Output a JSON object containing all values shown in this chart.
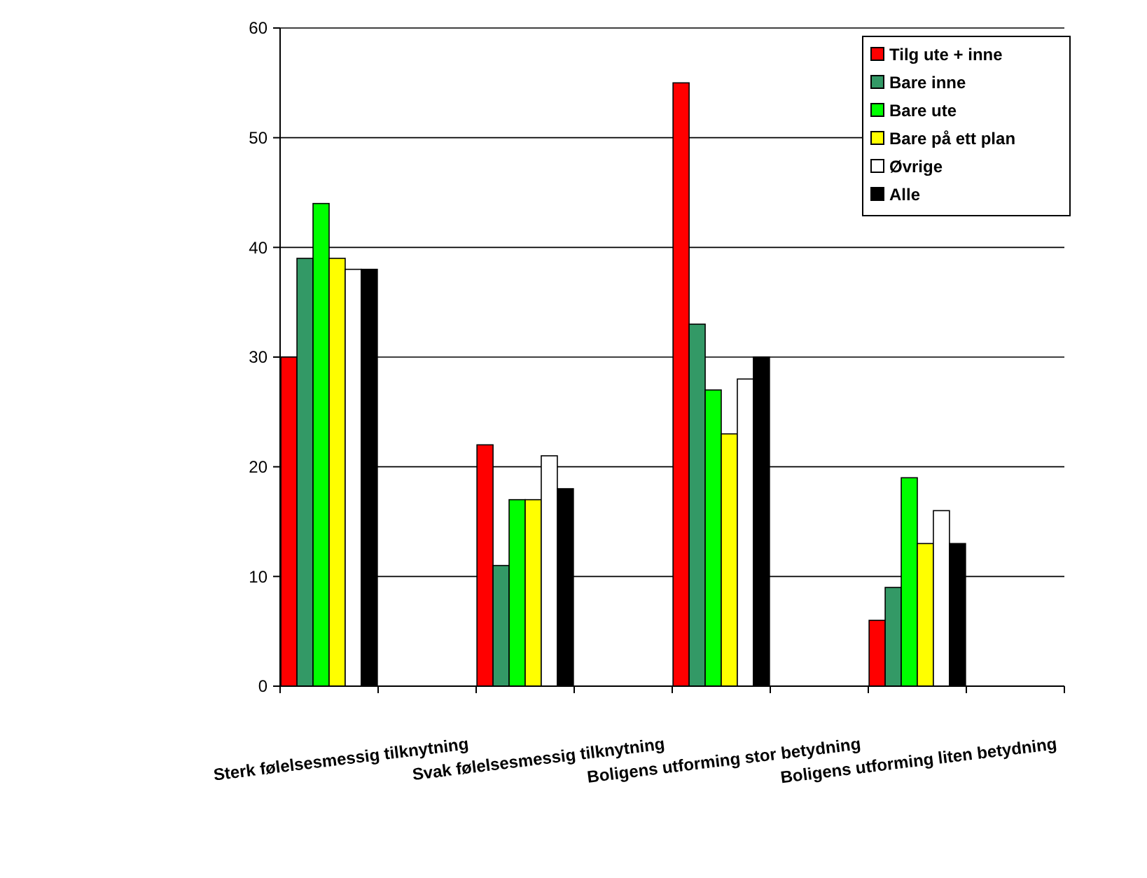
{
  "chart_data": {
    "type": "bar",
    "categories": [
      "Sterk følelsesmessig tilknytning",
      "Svak følelsesmessig tilknytning",
      "Boligens utforming stor betydning",
      "Boligens utforming liten betydning"
    ],
    "series": [
      {
        "name": "Tilg ute + inne",
        "color": "#ff0000",
        "values": [
          30,
          22,
          55,
          6
        ]
      },
      {
        "name": "Bare inne",
        "color": "#339966",
        "values": [
          39,
          11,
          33,
          9
        ]
      },
      {
        "name": "Bare ute",
        "color": "#00ff00",
        "values": [
          44,
          17,
          27,
          19
        ]
      },
      {
        "name": "Bare på ett plan",
        "color": "#ffff00",
        "values": [
          39,
          17,
          23,
          13
        ]
      },
      {
        "name": "Øvrige",
        "color": "#ffffff",
        "values": [
          38,
          21,
          28,
          16
        ]
      },
      {
        "name": "Alle",
        "color": "#000000",
        "values": [
          38,
          18,
          30,
          13
        ]
      }
    ],
    "ylim": [
      0,
      60
    ],
    "yticks": [
      0,
      10,
      20,
      30,
      40,
      50,
      60
    ],
    "grid": "y",
    "legend": "top right"
  }
}
